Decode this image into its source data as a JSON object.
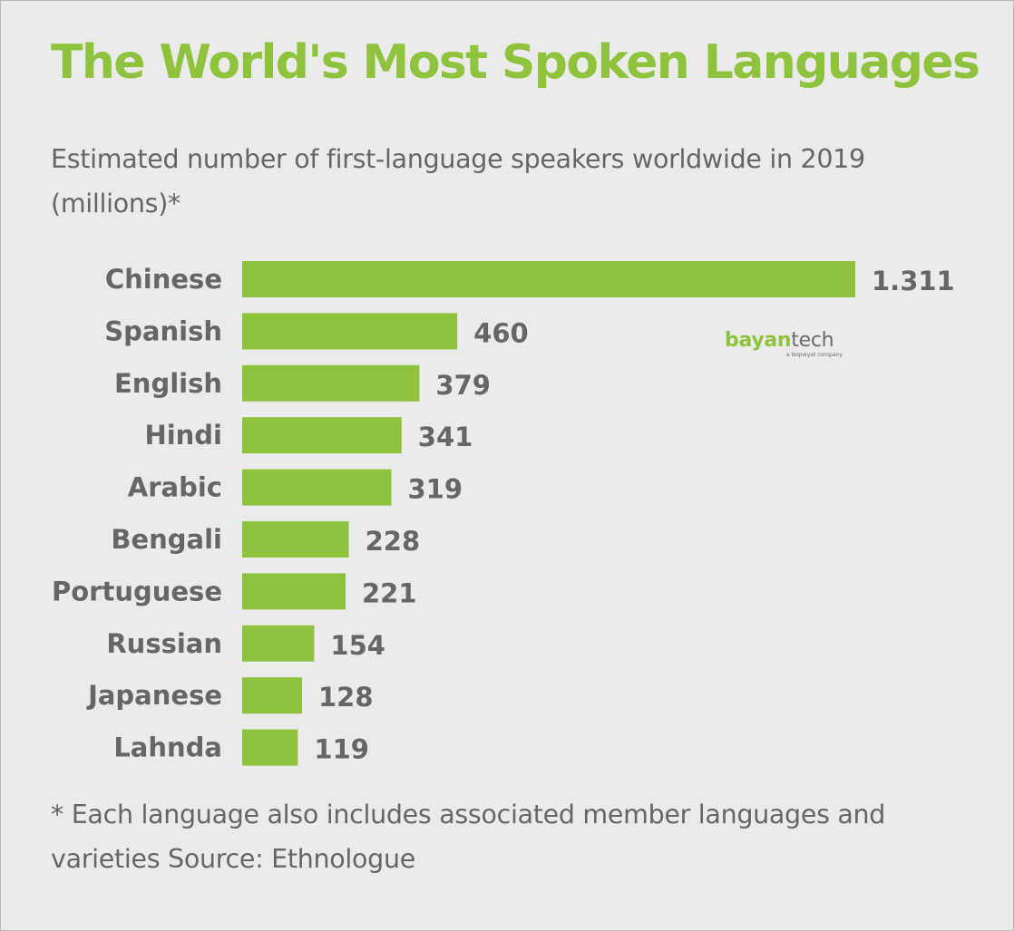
{
  "title": "The World's Most Spoken Languages",
  "subtitle": "Estimated number of first-language speakers worldwide in 2019 (millions)*",
  "footnote": "* Each language also includes associated member languages and varieties Source: Ethnologue",
  "logo": {
    "word_part1": "bayan",
    "word_part2": "tech",
    "tagline": "a teqneyat company"
  },
  "colors": {
    "background": "#ebebeb",
    "bar": "#8fc33e",
    "title": "#8fc33e",
    "text": "#666666",
    "logo_green": "#8fc33e",
    "logo_gray": "#6b6b6b"
  },
  "chart_data": {
    "type": "bar",
    "orientation": "horizontal",
    "title": "The World's Most Spoken Languages",
    "subtitle": "Estimated number of first-language speakers worldwide in 2019 (millions)*",
    "xlabel": "",
    "ylabel": "",
    "grid": false,
    "legend": "none",
    "categories": [
      "Chinese",
      "Spanish",
      "English",
      "Hindi",
      "Arabic",
      "Bengali",
      "Portuguese",
      "Russian",
      "Japanese",
      "Lahnda"
    ],
    "values": [
      1311,
      460,
      379,
      341,
      319,
      228,
      221,
      154,
      128,
      119
    ],
    "value_labels": [
      "1.311",
      "460",
      "379",
      "341",
      "319",
      "228",
      "221",
      "154",
      "128",
      "119"
    ],
    "xlim": [
      0,
      1311
    ]
  }
}
